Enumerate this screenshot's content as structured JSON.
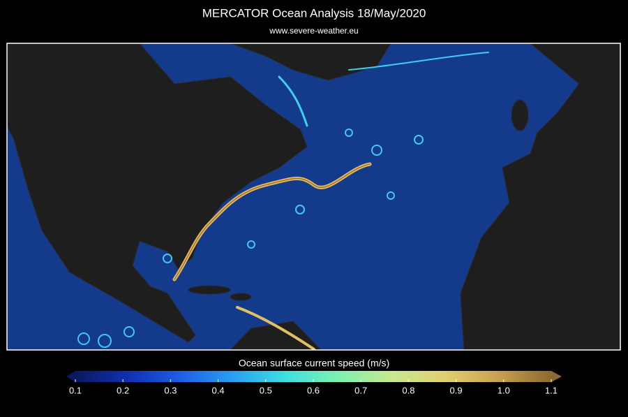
{
  "title": "MERCATOR Ocean Analysis   18/May/2020",
  "subtitle": "www.severe-weather.eu",
  "colorbar": {
    "label": "Ocean surface current speed (m/s)",
    "range": [
      0.1,
      1.1
    ],
    "ticks": [
      0.1,
      0.2,
      0.3,
      0.4,
      0.5,
      0.6,
      0.7,
      0.8,
      0.9,
      {
        "value": 1,
        "label": "1.0"
      },
      1.1
    ],
    "colors": [
      "#0a1a5c",
      "#1030b0",
      "#1f5ee8",
      "#2aa0f0",
      "#3fe0e0",
      "#80f0b0",
      "#c8e890",
      "#e0d070",
      "#c8a050",
      "#8c6a30"
    ]
  }
}
